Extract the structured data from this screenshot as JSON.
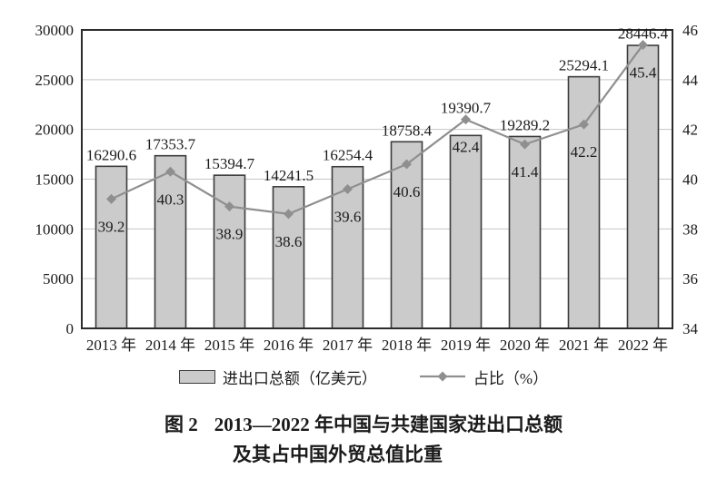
{
  "chart_data": {
    "type": "bar",
    "subtype": "bar-line-combo",
    "categories": [
      "2013 年",
      "2014 年",
      "2015 年",
      "2016 年",
      "2017 年",
      "2018 年",
      "2019 年",
      "2020 年",
      "2021 年",
      "2022 年"
    ],
    "series": [
      {
        "name": "进出口总额（亿美元）",
        "type": "bar",
        "axis": "left",
        "values": [
          16290.6,
          17353.7,
          15394.7,
          14241.5,
          16254.4,
          18758.4,
          19390.7,
          19289.2,
          25294.1,
          28446.4
        ]
      },
      {
        "name": "占比（%）",
        "type": "line",
        "axis": "right",
        "values": [
          39.2,
          40.3,
          38.9,
          38.6,
          39.6,
          40.6,
          42.4,
          41.4,
          42.2,
          45.4
        ]
      }
    ],
    "y_left": {
      "min": 0,
      "max": 30000,
      "ticks": [
        0,
        5000,
        10000,
        15000,
        20000,
        25000,
        30000
      ]
    },
    "y_right": {
      "min": 34,
      "max": 46,
      "ticks": [
        34,
        36,
        38,
        40,
        42,
        44,
        46
      ]
    },
    "grid": true,
    "legend_position": "bottom",
    "colors": {
      "bar_fill": "#cbcbcb",
      "bar_border": "#3c3c3c",
      "line": "#8f8f8f",
      "marker": "#8f8f8f",
      "grid": "#c6c6c6",
      "plot_border": "#2b2b2b",
      "text": "#1a1a1a"
    }
  },
  "legend": {
    "bar_label": "进出口总额（亿美元）",
    "line_label": "占比（%）"
  },
  "caption": {
    "fig_label": "图 2",
    "line1": "2013—2022 年中国与共建国家进出口总额",
    "line2": "及其占中国外贸总值比重"
  }
}
